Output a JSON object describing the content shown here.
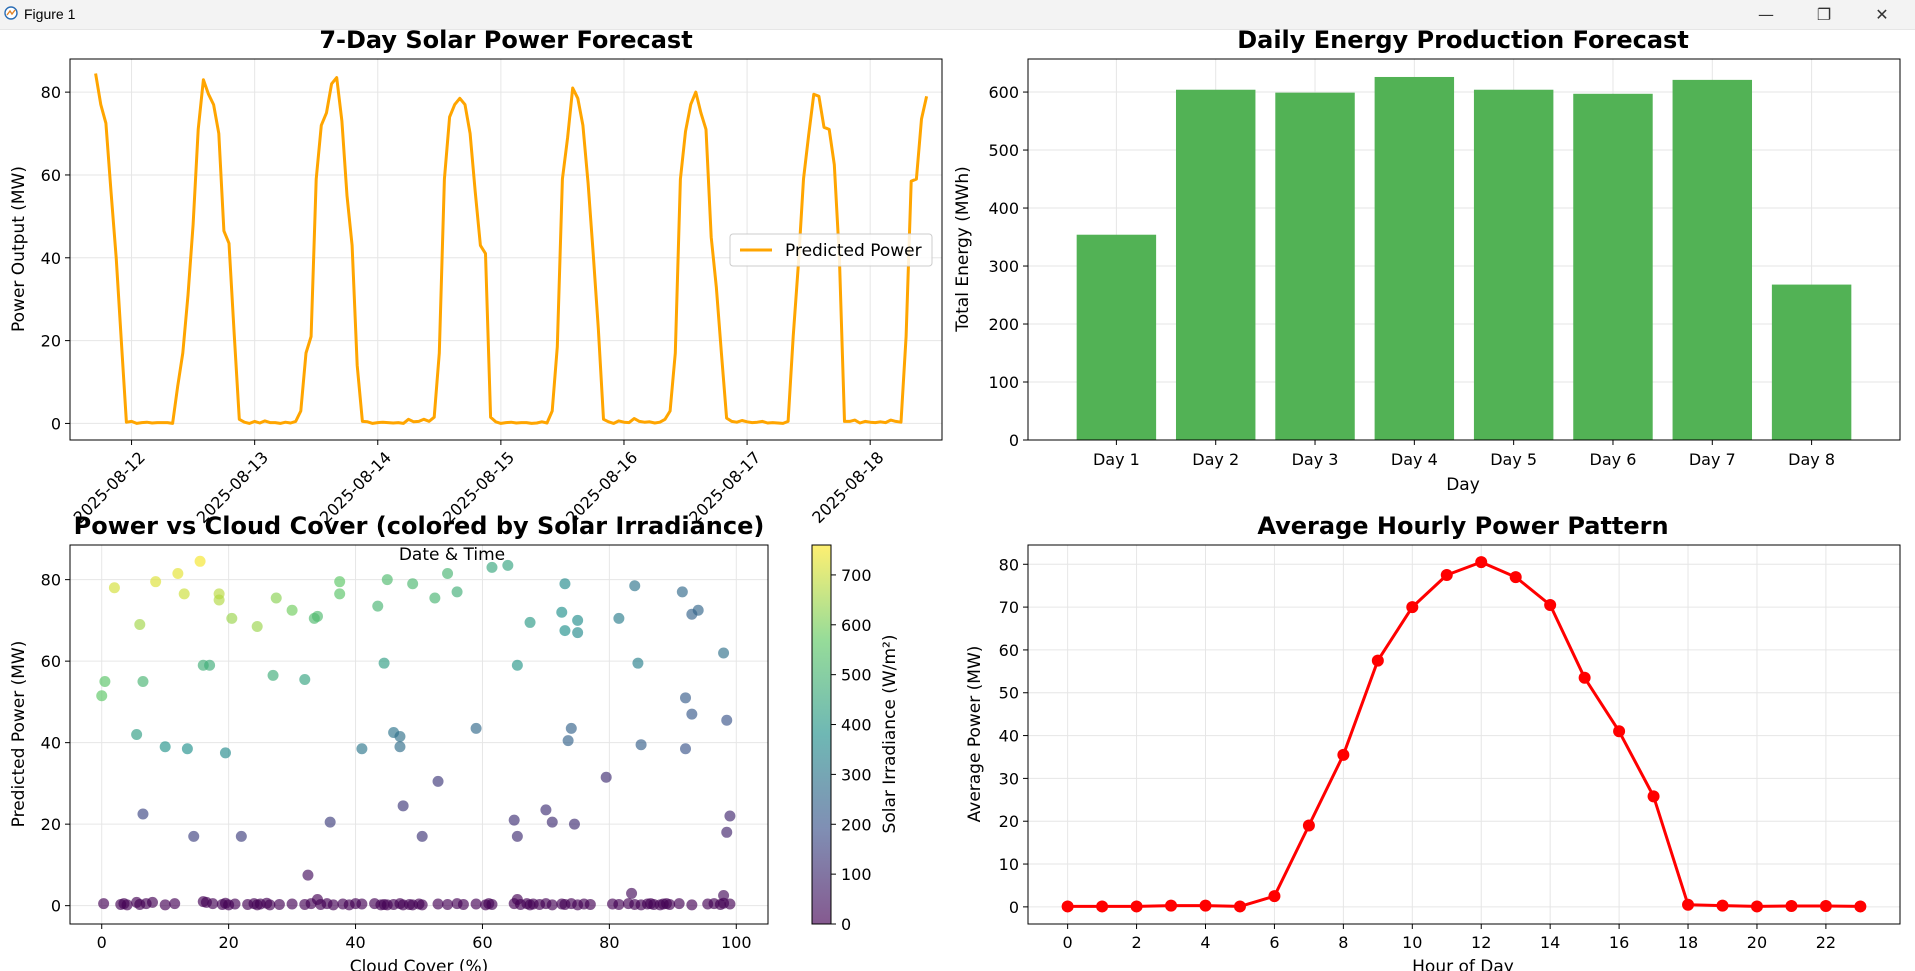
{
  "window": {
    "title": "Figure 1",
    "minimize_glyph": "—",
    "restore_glyph": "❐",
    "close_glyph": "✕"
  },
  "colors": {
    "line": "#FFA500",
    "bar": "#4CAF50",
    "hourly": "#FF0000",
    "grid": "#e6e6e6"
  },
  "chart_data": [
    {
      "type": "line",
      "title": "7-Day Solar Power Forecast",
      "xlabel": "Date & Time",
      "ylabel": "Power Output (MW)",
      "x_ticks": [
        "2025-08-12",
        "2025-08-13",
        "2025-08-14",
        "2025-08-15",
        "2025-08-16",
        "2025-08-17",
        "2025-08-18"
      ],
      "y_ticks": [
        0,
        20,
        40,
        60,
        80
      ],
      "xlim": [
        "2025-08-11 12:00",
        "2025-08-18 14:00"
      ],
      "ylim": [
        -4,
        88
      ],
      "legend": "center-right",
      "grid": true,
      "series": [
        {
          "name": "Predicted Power",
          "x_start": "2025-08-11 17:00",
          "x_step_hours": 1,
          "values": [
            84.5,
            77,
            72.5,
            56,
            40,
            20,
            0.3,
            0.5,
            0,
            0.2,
            0.3,
            0.1,
            0.2,
            0.2,
            0.2,
            0,
            9,
            17,
            31,
            48,
            71,
            83,
            79.5,
            77,
            70,
            46.5,
            43.5,
            22,
            1,
            0.3,
            0,
            0.5,
            0.1,
            0.6,
            0.2,
            0.2,
            0,
            0.3,
            0.1,
            0.5,
            3,
            17,
            21,
            59,
            72,
            75,
            82,
            83.5,
            73,
            55,
            43,
            14,
            0.5,
            0.4,
            0,
            0.2,
            0.3,
            0.2,
            0.1,
            0.2,
            0,
            1,
            0.4,
            0.5,
            1,
            0.5,
            1.5,
            17,
            59,
            74,
            77,
            78.5,
            77,
            70,
            56,
            43,
            41,
            1.5,
            0.4,
            0,
            0.2,
            0.3,
            0.1,
            0.2,
            0.2,
            0,
            0.1,
            0.4,
            0.1,
            3,
            18.5,
            59,
            69,
            81,
            78.5,
            72,
            58,
            41,
            23,
            1,
            0.4,
            0,
            0.6,
            0.3,
            0.2,
            1.2,
            0.5,
            0.3,
            0.4,
            0.1,
            0.3,
            1,
            3,
            17,
            59,
            70.5,
            77,
            80,
            75,
            71,
            45,
            33,
            17,
            1.3,
            0.5,
            0.3,
            0.7,
            0.4,
            0.2,
            0.3,
            0.5,
            0.1,
            0.2,
            0.1,
            0,
            0.5,
            21,
            38.5,
            59,
            69.5,
            79.5,
            79,
            71.5,
            71,
            62.5,
            40,
            0.5,
            0.5,
            0.8,
            0.1,
            0.5,
            0.3,
            0.2,
            0.4,
            0.2,
            0.8,
            0.5,
            0.3,
            21,
            58.5,
            59,
            73.5,
            79
          ]
        }
      ]
    },
    {
      "type": "bar",
      "title": "Daily Energy Production Forecast",
      "xlabel": "Day",
      "ylabel": "Total Energy (MWh)",
      "categories": [
        "Day 1",
        "Day 2",
        "Day 3",
        "Day 4",
        "Day 5",
        "Day 6",
        "Day 7",
        "Day 8"
      ],
      "values": [
        354,
        604,
        599,
        626,
        604,
        597,
        621,
        268
      ],
      "y_ticks": [
        0,
        100,
        200,
        300,
        400,
        500,
        600
      ],
      "ylim": [
        0,
        657
      ],
      "grid": true
    },
    {
      "type": "scatter",
      "title": "Power vs Cloud Cover (colored by Solar Irradiance)",
      "xlabel": "Cloud Cover (%)",
      "ylabel": "Predicted Power (MW)",
      "x_ticks": [
        0,
        20,
        40,
        60,
        80,
        100
      ],
      "y_ticks": [
        0,
        20,
        40,
        60,
        80
      ],
      "xlim": [
        -5,
        105
      ],
      "ylim": [
        -4.5,
        88.5
      ],
      "colorbar_label": "Solar Irradiance (W/m²)",
      "colorbar_ticks": [
        0,
        100,
        200,
        300,
        400,
        500,
        600,
        700
      ],
      "colorbar_range": [
        0,
        760
      ],
      "grid": true,
      "points": [
        [
          2,
          78,
          710
        ],
        [
          8.5,
          79.5,
          720
        ],
        [
          12,
          81.5,
          730
        ],
        [
          15.5,
          84.5,
          750
        ],
        [
          13,
          76.5,
          700
        ],
        [
          18.5,
          76.5,
          680
        ],
        [
          18.5,
          75,
          670
        ],
        [
          6,
          69,
          650
        ],
        [
          20.5,
          70.5,
          640
        ],
        [
          24.5,
          68.5,
          640
        ],
        [
          27.5,
          75.5,
          620
        ],
        [
          30,
          72.5,
          590
        ],
        [
          37.5,
          79.5,
          560
        ],
        [
          37.5,
          76.5,
          550
        ],
        [
          33.5,
          70.5,
          520
        ],
        [
          34,
          71,
          520
        ],
        [
          43.5,
          73.5,
          500
        ],
        [
          45,
          80,
          520
        ],
        [
          49,
          79,
          510
        ],
        [
          52.5,
          75.5,
          500
        ],
        [
          54.5,
          81.5,
          500
        ],
        [
          56,
          77,
          480
        ],
        [
          61.5,
          83,
          450
        ],
        [
          64,
          83.5,
          440
        ],
        [
          67.5,
          69.5,
          410
        ],
        [
          72.5,
          72,
          380
        ],
        [
          73,
          79,
          360
        ],
        [
          73,
          67.5,
          380
        ],
        [
          75,
          70,
          370
        ],
        [
          75,
          67,
          360
        ],
        [
          81.5,
          70.5,
          320
        ],
        [
          84,
          78.5,
          290
        ],
        [
          91.5,
          77,
          260
        ],
        [
          94,
          72.5,
          250
        ],
        [
          93,
          71.5,
          240
        ],
        [
          0,
          51.5,
          560
        ],
        [
          0.5,
          55,
          550
        ],
        [
          6.5,
          55,
          500
        ],
        [
          16,
          59,
          480
        ],
        [
          17,
          59,
          470
        ],
        [
          27,
          56.5,
          470
        ],
        [
          32,
          55.5,
          440
        ],
        [
          44.5,
          59.5,
          420
        ],
        [
          65.5,
          59,
          400
        ],
        [
          84.5,
          59.5,
          330
        ],
        [
          98,
          62,
          280
        ],
        [
          5.5,
          42,
          420
        ],
        [
          10,
          39,
          390
        ],
        [
          13.5,
          38.5,
          380
        ],
        [
          19.5,
          37.5,
          360
        ],
        [
          41,
          38.5,
          300
        ],
        [
          46,
          42.5,
          290
        ],
        [
          47,
          41.5,
          280
        ],
        [
          47,
          39,
          270
        ],
        [
          59,
          43.5,
          260
        ],
        [
          73.5,
          40.5,
          240
        ],
        [
          74,
          43.5,
          240
        ],
        [
          85,
          39.5,
          230
        ],
        [
          92,
          51,
          220
        ],
        [
          93,
          47,
          210
        ],
        [
          98.5,
          45.5,
          200
        ],
        [
          92,
          38.5,
          200
        ],
        [
          6.5,
          22.5,
          160
        ],
        [
          14.5,
          17,
          150
        ],
        [
          22,
          17,
          140
        ],
        [
          36,
          20.5,
          140
        ],
        [
          47.5,
          24.5,
          130
        ],
        [
          50.5,
          17,
          120
        ],
        [
          53,
          30.5,
          130
        ],
        [
          65,
          21,
          110
        ],
        [
          65.5,
          17,
          100
        ],
        [
          70,
          23.5,
          110
        ],
        [
          71,
          20.5,
          100
        ],
        [
          74.5,
          20,
          100
        ],
        [
          79.5,
          31.5,
          100
        ],
        [
          99,
          22,
          90
        ],
        [
          98.5,
          18,
          80
        ],
        [
          32.5,
          7.5,
          30
        ],
        [
          83.5,
          3,
          20
        ],
        [
          98,
          2.5,
          20
        ],
        [
          0.3,
          0.5,
          0
        ],
        [
          3,
          0.3,
          0
        ],
        [
          3.5,
          0.5,
          0
        ],
        [
          4,
          0.2,
          0
        ],
        [
          5.5,
          0.8,
          0
        ],
        [
          6,
          0.3,
          0
        ],
        [
          7,
          0.5,
          0
        ],
        [
          8,
          0.8,
          0
        ],
        [
          10,
          0.2,
          0
        ],
        [
          11.5,
          0.5,
          0
        ],
        [
          16,
          1,
          0
        ],
        [
          16.5,
          0.8,
          0
        ],
        [
          17.5,
          0.5,
          0
        ],
        [
          19,
          0.3,
          0
        ],
        [
          19.5,
          0.6,
          0
        ],
        [
          20,
          0.2,
          0
        ],
        [
          21,
          0.4,
          0
        ],
        [
          23,
          0.3,
          0
        ],
        [
          24,
          0.5,
          0
        ],
        [
          24.5,
          0.2,
          0
        ],
        [
          25,
          0.4,
          0
        ],
        [
          26,
          0.6,
          0
        ],
        [
          26.5,
          0.2,
          0
        ],
        [
          28,
          0.3,
          0
        ],
        [
          30,
          0.4,
          0
        ],
        [
          32,
          0.3,
          0
        ],
        [
          33,
          0.5,
          0
        ],
        [
          34,
          1.5,
          0
        ],
        [
          34.5,
          0.3,
          0
        ],
        [
          35.5,
          0.5,
          0
        ],
        [
          36.5,
          0.2,
          0
        ],
        [
          38,
          0.4,
          0
        ],
        [
          39,
          0.2,
          0
        ],
        [
          40,
          0.5,
          0
        ],
        [
          41,
          0.4,
          0
        ],
        [
          43,
          0.5,
          0
        ],
        [
          44,
          0.2,
          0
        ],
        [
          44.5,
          0.3,
          0
        ],
        [
          45,
          0.2,
          0
        ],
        [
          46,
          0.3,
          0
        ],
        [
          47,
          0.5,
          0
        ],
        [
          47.5,
          0.2,
          0
        ],
        [
          48.5,
          0.3,
          0
        ],
        [
          49,
          0.2,
          0
        ],
        [
          50,
          0.4,
          0
        ],
        [
          50.5,
          0.2,
          0
        ],
        [
          53,
          0.4,
          0
        ],
        [
          54.5,
          0.3,
          0
        ],
        [
          56,
          0.5,
          0
        ],
        [
          57,
          0.3,
          0
        ],
        [
          59,
          0.4,
          0
        ],
        [
          60.5,
          0.2,
          0
        ],
        [
          61,
          0.5,
          0
        ],
        [
          61.5,
          0.3,
          0
        ],
        [
          65,
          0.5,
          0
        ],
        [
          65.5,
          1.5,
          0
        ],
        [
          66,
          0.3,
          0
        ],
        [
          67,
          0.5,
          0
        ],
        [
          67.5,
          0.2,
          0
        ],
        [
          68,
          0.4,
          0
        ],
        [
          69,
          0.3,
          0
        ],
        [
          70,
          0.5,
          0
        ],
        [
          71,
          0.2,
          0
        ],
        [
          72.5,
          0.4,
          0
        ],
        [
          73,
          0.3,
          0
        ],
        [
          74,
          0.5,
          0
        ],
        [
          75,
          0.2,
          0
        ],
        [
          76,
          0.4,
          0
        ],
        [
          77,
          0.3,
          0
        ],
        [
          80.5,
          0.4,
          0
        ],
        [
          81.5,
          0.3,
          0
        ],
        [
          83,
          0.5,
          0
        ],
        [
          84,
          0.3,
          0
        ],
        [
          85,
          0.2,
          0
        ],
        [
          86,
          0.4,
          0
        ],
        [
          86.5,
          0.5,
          0
        ],
        [
          87,
          0.3,
          0
        ],
        [
          88,
          0.2,
          0
        ],
        [
          88.5,
          0.4,
          0
        ],
        [
          89,
          0.5,
          0
        ],
        [
          89.5,
          0.3,
          0
        ],
        [
          91,
          0.5,
          0
        ],
        [
          93,
          0.2,
          0
        ],
        [
          95.5,
          0.4,
          0
        ],
        [
          96.5,
          0.5,
          0
        ],
        [
          97.5,
          0.3,
          0
        ],
        [
          98,
          0.6,
          0
        ],
        [
          99,
          0.4,
          0
        ]
      ]
    },
    {
      "type": "line",
      "title": "Average Hourly Power Pattern",
      "xlabel": "Hour of Day",
      "ylabel": "Average Power (MW)",
      "x_ticks": [
        0,
        2,
        4,
        6,
        8,
        10,
        12,
        14,
        16,
        18,
        20,
        22
      ],
      "y_ticks": [
        0,
        10,
        20,
        30,
        40,
        50,
        60,
        70,
        80
      ],
      "xlim": [
        -1.15,
        24.15
      ],
      "ylim": [
        -4,
        84.5
      ],
      "grid": true,
      "x": [
        0,
        1,
        2,
        3,
        4,
        5,
        6,
        7,
        8,
        9,
        10,
        11,
        12,
        13,
        14,
        15,
        16,
        17,
        18,
        19,
        20,
        21,
        22,
        23
      ],
      "values": [
        0.1,
        0.1,
        0.1,
        0.3,
        0.3,
        0.1,
        2.5,
        19,
        35.5,
        57.5,
        70,
        77.5,
        80.5,
        77,
        70.5,
        53.5,
        41,
        25.8,
        0.5,
        0.3,
        0.1,
        0.2,
        0.2,
        0.1
      ]
    }
  ]
}
